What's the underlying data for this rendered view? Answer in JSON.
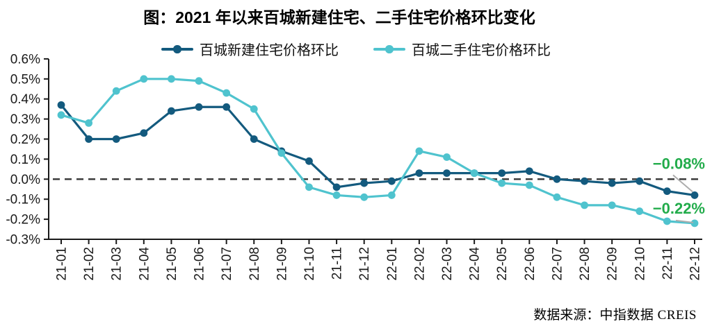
{
  "title": "图：2021 年以来百城新建住宅、二手住宅价格环比变化",
  "source": {
    "prefix": "数据来源：",
    "name": "中指数据 CREIS"
  },
  "chart_data": {
    "type": "line",
    "title": "图：2021 年以来百城新建住宅、二手住宅价格环比变化",
    "categories": [
      "21-01",
      "21-02",
      "21-03",
      "21-04",
      "21-05",
      "21-06",
      "21-07",
      "21-08",
      "21-09",
      "21-10",
      "21-11",
      "21-12",
      "22-01",
      "22-02",
      "22-03",
      "22-04",
      "22-05",
      "22-06",
      "22-07",
      "22-08",
      "22-09",
      "22-10",
      "22-11",
      "22-12"
    ],
    "series": [
      {
        "name": "百城新建住宅价格环比",
        "color": "#135A7E",
        "values": [
          0.37,
          0.2,
          0.2,
          0.23,
          0.34,
          0.36,
          0.36,
          0.2,
          0.14,
          0.09,
          -0.04,
          -0.02,
          -0.01,
          0.03,
          0.03,
          0.03,
          0.03,
          0.04,
          0.0,
          -0.01,
          -0.02,
          -0.01,
          -0.06,
          -0.08
        ]
      },
      {
        "name": "百城二手住宅价格环比",
        "color": "#4FC3CE",
        "values": [
          0.32,
          0.28,
          0.44,
          0.5,
          0.5,
          0.49,
          0.43,
          0.35,
          0.13,
          -0.04,
          -0.08,
          -0.09,
          -0.08,
          0.14,
          0.11,
          0.03,
          -0.02,
          -0.03,
          -0.09,
          -0.13,
          -0.13,
          -0.16,
          -0.21,
          -0.22
        ]
      }
    ],
    "xlabel": "",
    "ylabel": "",
    "ylim": [
      -0.3,
      0.6
    ],
    "ytick_step": 0.1,
    "yticks": [
      "0.6%",
      "0.5%",
      "0.4%",
      "0.3%",
      "0.2%",
      "0.1%",
      "0.0%",
      "-0.1%",
      "-0.2%",
      "-0.3%"
    ],
    "grid": false,
    "zero_line": "dashed",
    "legend_position": "top-center",
    "annotations": [
      {
        "text": "−0.08%",
        "series": "百城新建住宅价格环比",
        "color": "#22AC4B"
      },
      {
        "text": "−0.22%",
        "series": "百城二手住宅价格环比",
        "color": "#22AC4B"
      }
    ],
    "leader_line_color": "#ADADAD",
    "axis_color": "#1A1A1A"
  }
}
